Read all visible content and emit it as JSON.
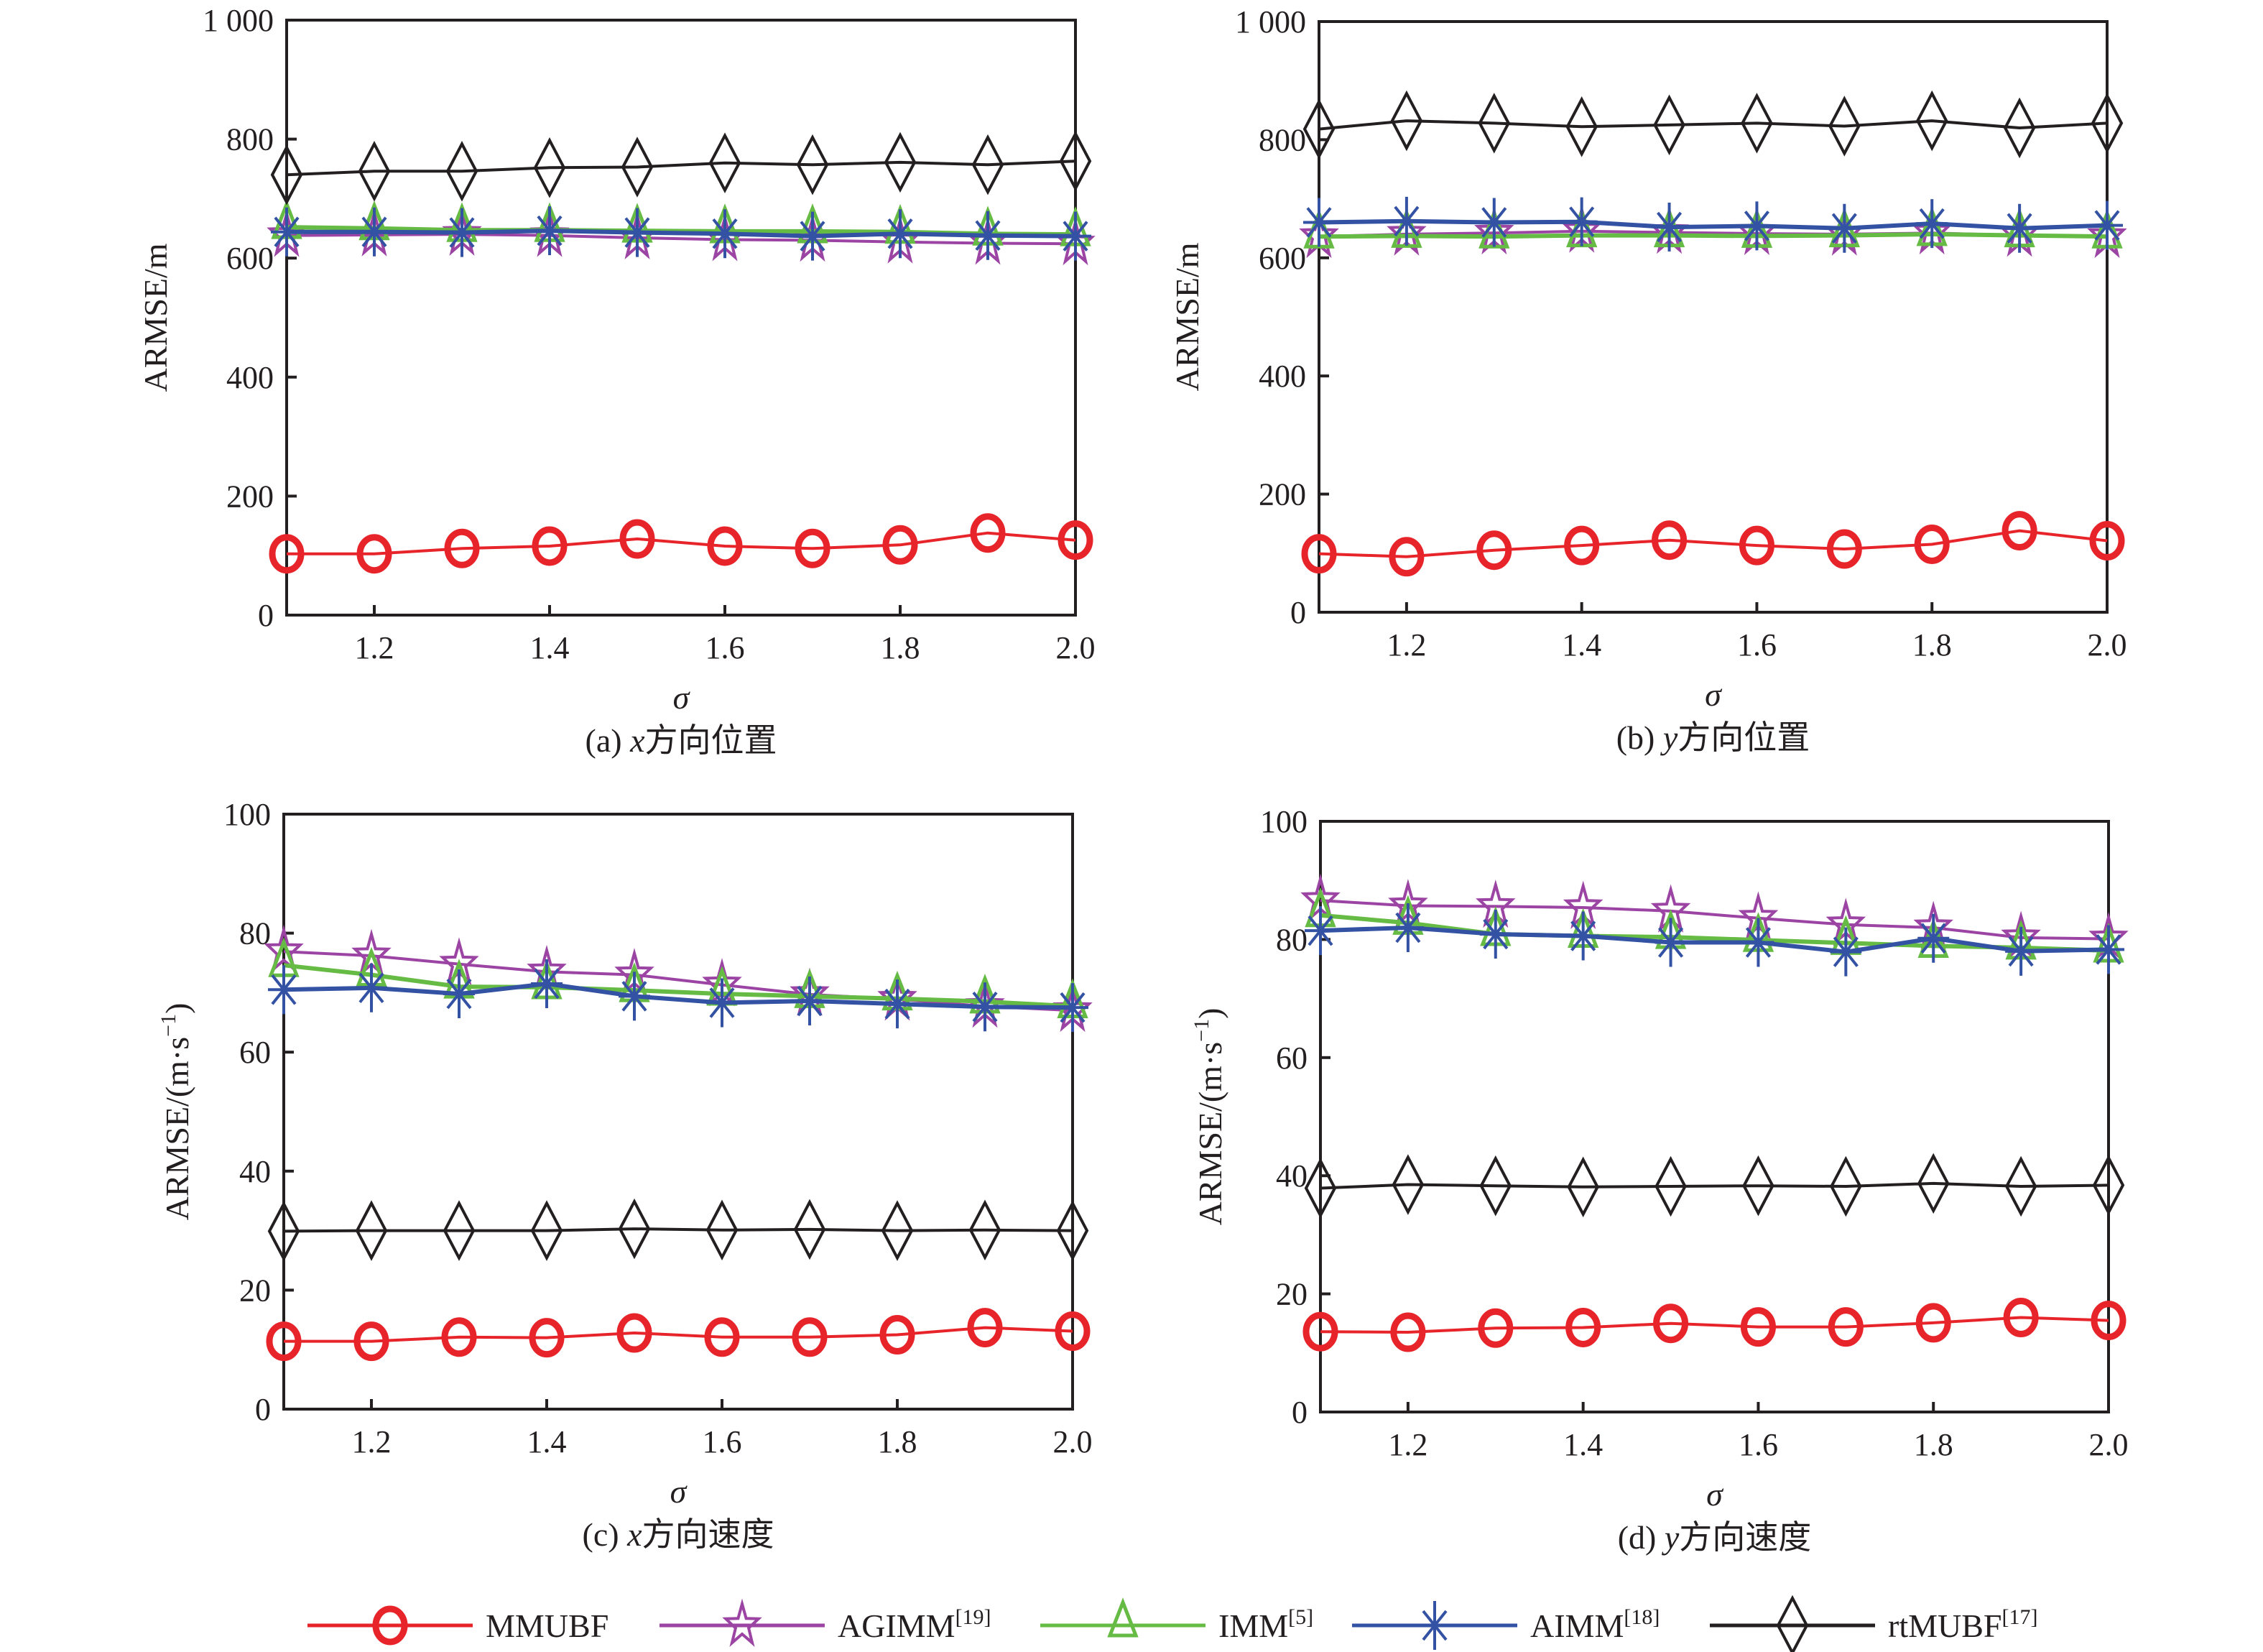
{
  "figure": {
    "legend": [
      {
        "key": "MMUBF",
        "label": "MMUBF",
        "ref": "",
        "color": "#e8242b",
        "marker": "circle"
      },
      {
        "key": "AGIMM",
        "label": "AGIMM",
        "ref": "[19]",
        "color": "#9b44a3",
        "marker": "star"
      },
      {
        "key": "IMM",
        "label": "IMM",
        "ref": "[5]",
        "color": "#66bb44",
        "marker": "triangle"
      },
      {
        "key": "AIMM",
        "label": "AIMM",
        "ref": "[18]",
        "color": "#3352a3",
        "marker": "asterisk"
      },
      {
        "key": "rtMUBF",
        "label": "rtMUBF",
        "ref": "[17]",
        "color": "#231f20",
        "marker": "diamond"
      }
    ]
  },
  "chart_data": [
    {
      "type": "line",
      "panel": "a",
      "caption_prefix": "(a) ",
      "caption_var": "x",
      "caption_text": "方向位置",
      "xlabel": "σ",
      "ylabel": "ARMSE/m",
      "ylabel_sup": "",
      "ylabel_tail": "",
      "x": [
        1.1,
        1.2,
        1.3,
        1.4,
        1.5,
        1.6,
        1.7,
        1.8,
        1.9,
        2.0
      ],
      "xlim": [
        1.1,
        2.0
      ],
      "xticks": [
        1.2,
        1.4,
        1.6,
        1.8,
        2.0
      ],
      "xtick_labels": [
        "1.2",
        "1.4",
        "1.6",
        "1.8",
        "2.0"
      ],
      "ylim": [
        0,
        1000
      ],
      "yticks": [
        0,
        200,
        400,
        600,
        800,
        1000
      ],
      "ytick_labels": [
        "0",
        "200",
        "400",
        "600",
        "800",
        "1 000"
      ],
      "grid": false,
      "series": [
        {
          "name": "MMUBF",
          "values": [
            103,
            103,
            112,
            116,
            128,
            116,
            112,
            118,
            138,
            126
          ]
        },
        {
          "name": "AGIMM",
          "values": [
            638,
            639,
            640,
            638,
            634,
            631,
            630,
            627,
            625,
            624
          ]
        },
        {
          "name": "IMM",
          "values": [
            652,
            650,
            647,
            647,
            646,
            645,
            645,
            644,
            641,
            640
          ]
        },
        {
          "name": "AIMM",
          "values": [
            644,
            644,
            643,
            646,
            643,
            641,
            637,
            641,
            638,
            637
          ]
        },
        {
          "name": "rtMUBF",
          "values": [
            740,
            746,
            746,
            752,
            753,
            760,
            757,
            761,
            757,
            763
          ]
        }
      ]
    },
    {
      "type": "line",
      "panel": "b",
      "caption_prefix": "(b) ",
      "caption_var": "y",
      "caption_text": "方向位置",
      "xlabel": "σ",
      "ylabel": "ARMSE/m",
      "ylabel_sup": "",
      "ylabel_tail": "",
      "x": [
        1.1,
        1.2,
        1.3,
        1.4,
        1.5,
        1.6,
        1.7,
        1.8,
        1.9,
        2.0
      ],
      "xlim": [
        1.1,
        2.0
      ],
      "xticks": [
        1.2,
        1.4,
        1.6,
        1.8,
        2.0
      ],
      "xtick_labels": [
        "1.2",
        "1.4",
        "1.6",
        "1.8",
        "2.0"
      ],
      "ylim": [
        0,
        1000
      ],
      "yticks": [
        0,
        200,
        400,
        600,
        800,
        1000
      ],
      "ytick_labels": [
        "0",
        "200",
        "400",
        "600",
        "800",
        "1 000"
      ],
      "grid": false,
      "series": [
        {
          "name": "MMUBF",
          "values": [
            99,
            94,
            105,
            113,
            122,
            113,
            107,
            115,
            138,
            121
          ]
        },
        {
          "name": "AGIMM",
          "values": [
            636,
            640,
            642,
            645,
            643,
            641,
            640,
            642,
            638,
            636
          ]
        },
        {
          "name": "IMM",
          "values": [
            636,
            637,
            636,
            638,
            638,
            637,
            638,
            640,
            638,
            636
          ]
        },
        {
          "name": "AIMM",
          "values": [
            660,
            662,
            660,
            661,
            652,
            654,
            650,
            658,
            650,
            655
          ]
        },
        {
          "name": "rtMUBF",
          "values": [
            818,
            832,
            828,
            822,
            825,
            828,
            823,
            832,
            820,
            828
          ]
        }
      ]
    },
    {
      "type": "line",
      "panel": "c",
      "caption_prefix": "(c) ",
      "caption_var": "x",
      "caption_text": "方向速度",
      "xlabel": "σ",
      "ylabel": "ARMSE/(m·s",
      "ylabel_sup": "−1",
      "ylabel_tail": ")",
      "x": [
        1.1,
        1.2,
        1.3,
        1.4,
        1.5,
        1.6,
        1.7,
        1.8,
        1.9,
        2.0
      ],
      "xlim": [
        1.1,
        2.0
      ],
      "xticks": [
        1.2,
        1.4,
        1.6,
        1.8,
        2.0
      ],
      "xtick_labels": [
        "1.2",
        "1.4",
        "1.6",
        "1.8",
        "2.0"
      ],
      "ylim": [
        0,
        100
      ],
      "yticks": [
        0,
        20,
        40,
        60,
        80,
        100
      ],
      "ytick_labels": [
        "0",
        "20",
        "40",
        "60",
        "80",
        "100"
      ],
      "grid": false,
      "series": [
        {
          "name": "MMUBF",
          "values": [
            11.4,
            11.4,
            12.1,
            12.0,
            12.8,
            12.1,
            12.1,
            12.5,
            13.7,
            13.1
          ]
        },
        {
          "name": "AGIMM",
          "values": [
            76.9,
            76.2,
            74.8,
            73.5,
            73.0,
            71.3,
            69.7,
            68.9,
            67.7,
            67.0
          ]
        },
        {
          "name": "IMM",
          "values": [
            74.6,
            73.0,
            71.0,
            70.9,
            70.4,
            69.8,
            69.4,
            69.0,
            68.5,
            67.7
          ]
        },
        {
          "name": "AIMM",
          "values": [
            70.5,
            70.8,
            69.8,
            71.5,
            69.4,
            68.3,
            68.6,
            68.1,
            67.6,
            67.5
          ]
        },
        {
          "name": "rtMUBF",
          "values": [
            29.9,
            30.0,
            30.0,
            30.0,
            30.3,
            30.1,
            30.2,
            30.0,
            30.1,
            30.0
          ]
        }
      ]
    },
    {
      "type": "line",
      "panel": "d",
      "caption_prefix": "(d) ",
      "caption_var": "y",
      "caption_text": "方向速度",
      "xlabel": "σ",
      "ylabel": "ARMSE/(m·s",
      "ylabel_sup": "−1",
      "ylabel_tail": ")",
      "x": [
        1.1,
        1.2,
        1.3,
        1.4,
        1.5,
        1.6,
        1.7,
        1.8,
        1.9,
        2.0
      ],
      "xlim": [
        1.1,
        2.0
      ],
      "xticks": [
        1.2,
        1.4,
        1.6,
        1.8,
        2.0
      ],
      "xtick_labels": [
        "1.2",
        "1.4",
        "1.6",
        "1.8",
        "2.0"
      ],
      "ylim": [
        0,
        100
      ],
      "yticks": [
        0,
        20,
        40,
        60,
        80,
        100
      ],
      "ytick_labels": [
        "0",
        "20",
        "40",
        "60",
        "80",
        "100"
      ],
      "grid": false,
      "series": [
        {
          "name": "MMUBF",
          "values": [
            13.6,
            13.5,
            14.2,
            14.3,
            15.0,
            14.4,
            14.4,
            15.1,
            16.0,
            15.5
          ]
        },
        {
          "name": "AGIMM",
          "values": [
            86.6,
            85.7,
            85.6,
            85.4,
            84.8,
            83.6,
            82.5,
            82.0,
            80.3,
            80.1
          ]
        },
        {
          "name": "IMM",
          "values": [
            84.1,
            82.8,
            80.9,
            80.6,
            80.4,
            79.9,
            79.4,
            78.9,
            78.6,
            78.1
          ]
        },
        {
          "name": "AIMM",
          "values": [
            81.5,
            82.0,
            80.9,
            80.6,
            79.5,
            79.5,
            77.9,
            80.2,
            78.0,
            78.3
          ]
        },
        {
          "name": "rtMUBF",
          "values": [
            37.9,
            38.5,
            38.3,
            38.1,
            38.2,
            38.3,
            38.2,
            38.7,
            38.2,
            38.4
          ]
        }
      ]
    }
  ]
}
